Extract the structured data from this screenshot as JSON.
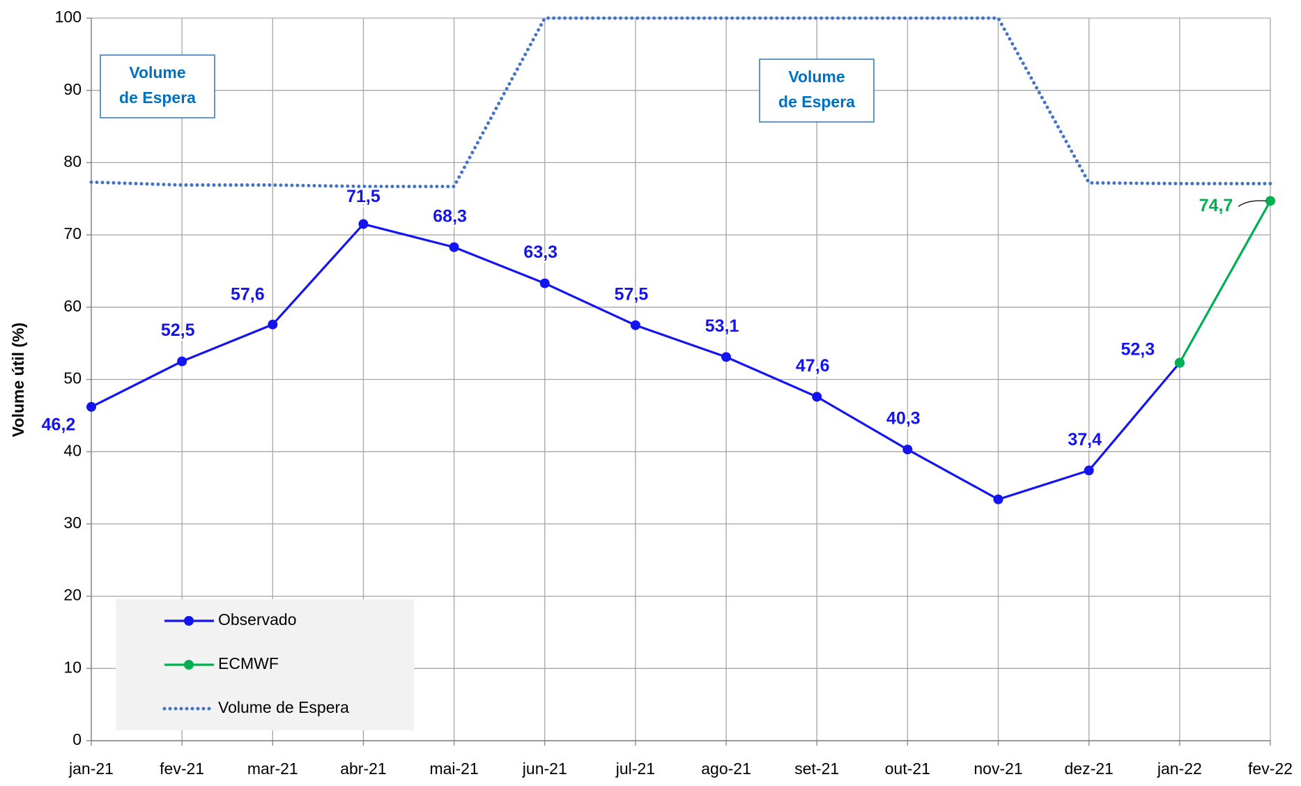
{
  "chart_data": {
    "type": "line",
    "y_label": "Volume útil (%)",
    "categories": [
      "jan-21",
      "fev-21",
      "mar-21",
      "abr-21",
      "mai-21",
      "jun-21",
      "jul-21",
      "ago-21",
      "set-21",
      "out-21",
      "nov-21",
      "dez-21",
      "jan-22",
      "fev-22"
    ],
    "series": [
      {
        "name": "Observado",
        "color": "#1414f0",
        "style": "solid",
        "markers": true,
        "values": [
          46.2,
          52.5,
          57.6,
          71.5,
          68.3,
          63.3,
          57.5,
          53.1,
          47.6,
          40.3,
          33.4,
          37.4,
          52.3,
          null
        ],
        "value_labels": [
          "46,2",
          "52,5",
          "57,6",
          "71,5",
          "68,3",
          "63,3",
          "57,5",
          "53,1",
          "47,6",
          "40,3",
          null,
          "37,4",
          "52,3",
          null
        ]
      },
      {
        "name": "ECMWF",
        "color": "#00b050",
        "style": "solid",
        "markers": true,
        "values": [
          null,
          null,
          null,
          null,
          null,
          null,
          null,
          null,
          null,
          null,
          null,
          null,
          52.3,
          74.7
        ],
        "value_labels": [
          null,
          null,
          null,
          null,
          null,
          null,
          null,
          null,
          null,
          null,
          null,
          null,
          null,
          "74,7"
        ]
      },
      {
        "name": "Volume de Espera",
        "color": "#4472c4",
        "style": "dotted",
        "markers": false,
        "values": [
          77.3,
          76.9,
          76.9,
          76.7,
          76.7,
          100,
          100,
          100,
          100,
          100,
          100,
          77.2,
          77.1,
          77.1
        ]
      }
    ],
    "annotations": [
      {
        "lines": [
          "Volume",
          "de Espera"
        ]
      },
      {
        "lines": [
          "Volume",
          "de Espera"
        ]
      }
    ],
    "ylim": [
      0,
      100
    ],
    "yticks": [
      0,
      10,
      20,
      30,
      40,
      50,
      60,
      70,
      80,
      90,
      100
    ],
    "grid": true,
    "legend": "lower left"
  }
}
